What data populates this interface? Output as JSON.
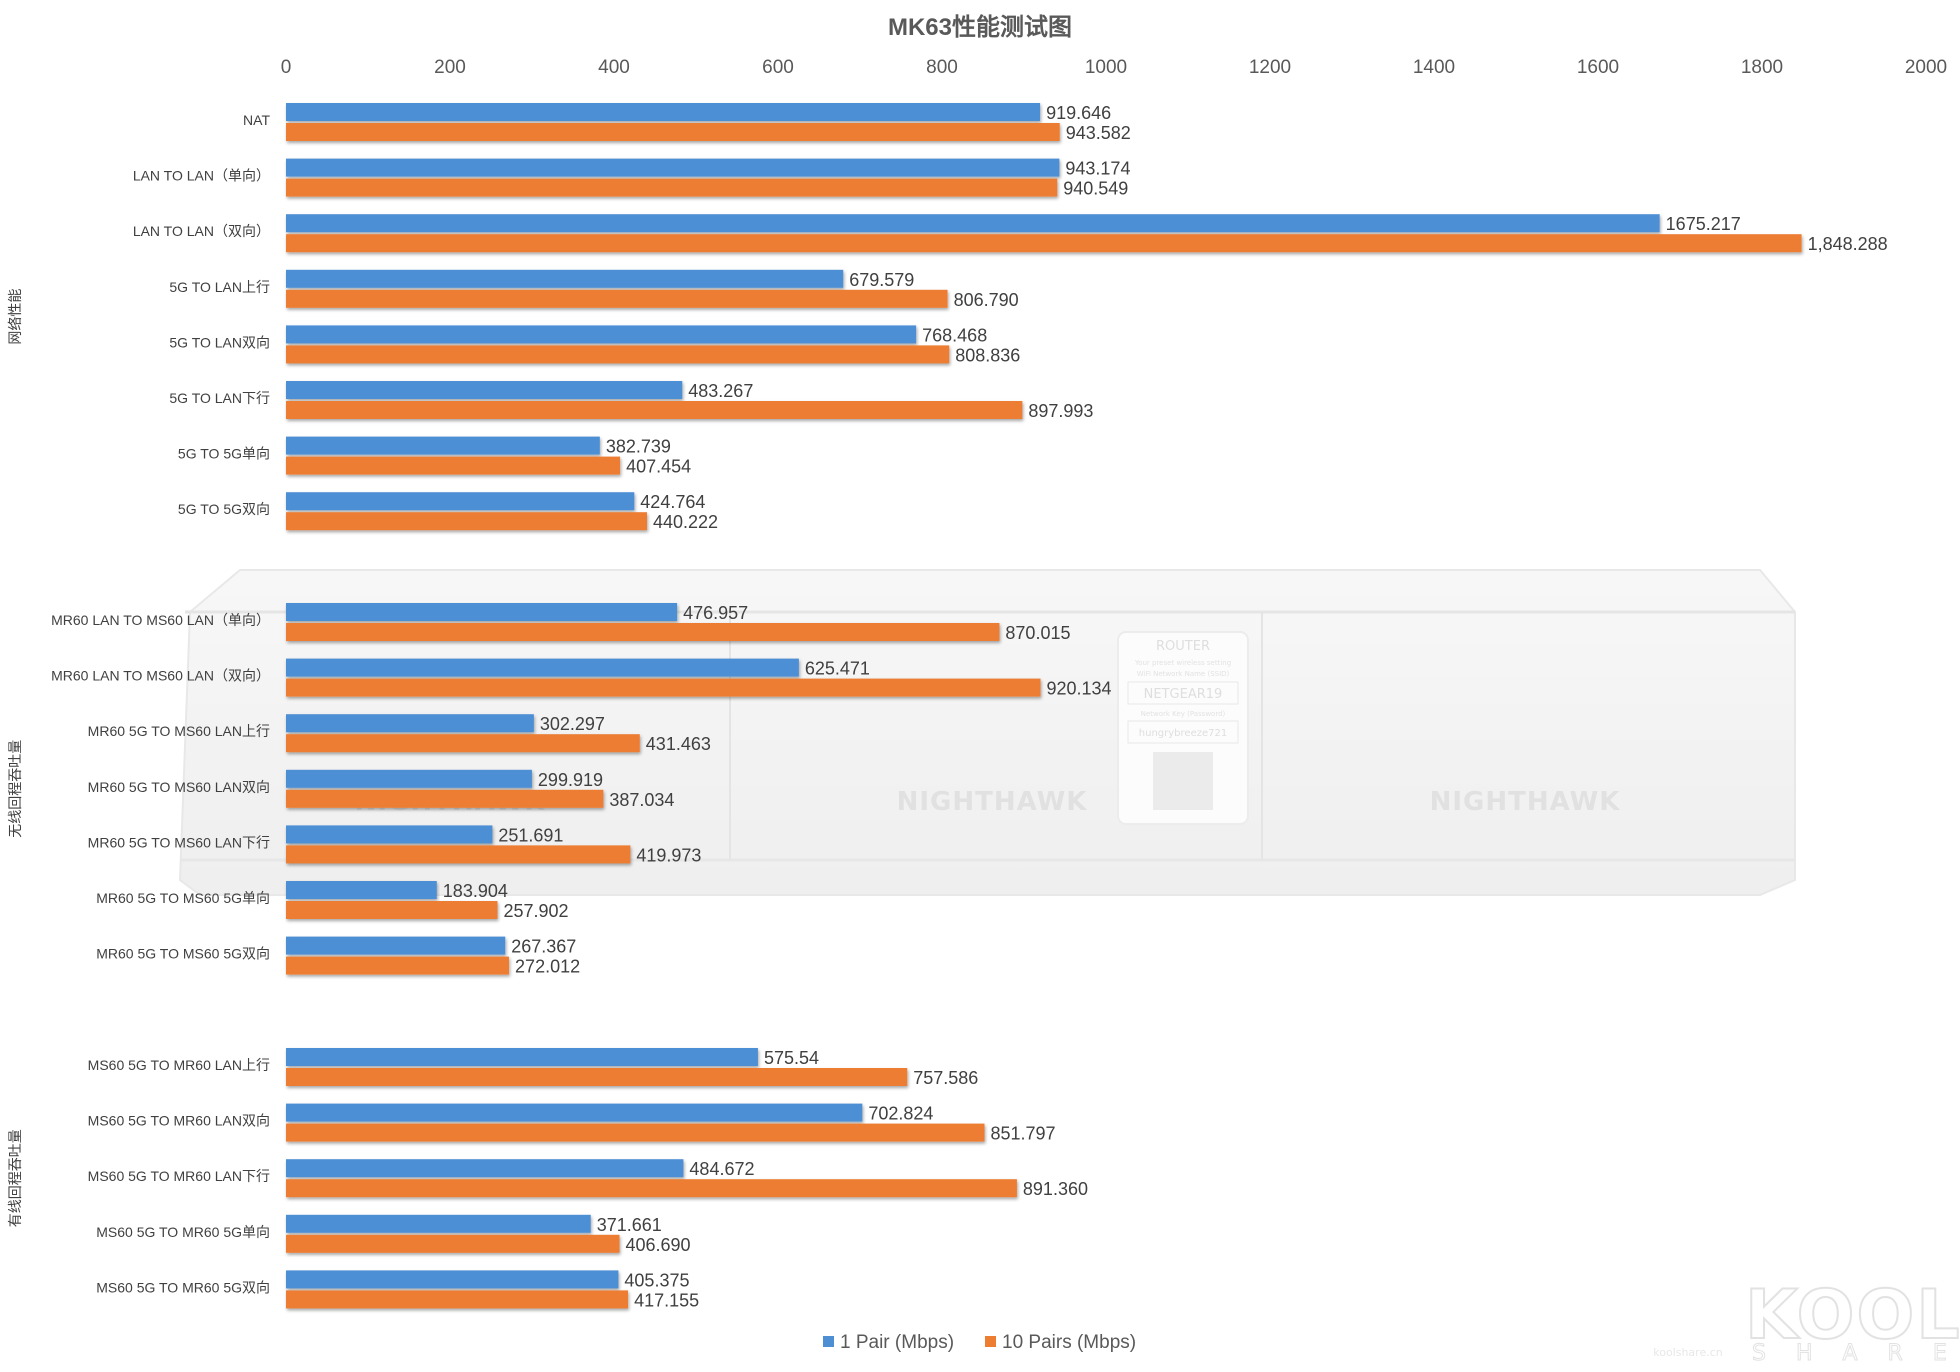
{
  "chart_data": {
    "type": "bar",
    "orientation": "horizontal",
    "title": "MK63性能测试图",
    "xlim": [
      0,
      2000
    ],
    "x_ticks": [
      0,
      200,
      400,
      600,
      800,
      1000,
      1200,
      1400,
      1600,
      1800,
      2000
    ],
    "x_axis_position": "top",
    "grid": false,
    "legend_position": "bottom-center",
    "series": [
      {
        "name": "1 Pair (Mbps)",
        "color": "#4e8fd4"
      },
      {
        "name": "10  Pairs  (Mbps)",
        "color": "#ed7d31"
      }
    ],
    "groups": [
      {
        "label": "网络性能",
        "items": [
          {
            "category": "NAT",
            "values": [
              919.646,
              943.582
            ],
            "labels": [
              "919.646",
              "943.582"
            ]
          },
          {
            "category": "LAN TO LAN（单向）",
            "values": [
              943.174,
              940.549
            ],
            "labels": [
              "943.174",
              "940.549"
            ]
          },
          {
            "category": "LAN TO LAN（双向）",
            "values": [
              1675.217,
              1848.288
            ],
            "labels": [
              "1675.217",
              "1,848.288"
            ]
          },
          {
            "category": "5G TO LAN上行",
            "values": [
              679.579,
              806.79
            ],
            "labels": [
              "679.579",
              "806.790"
            ]
          },
          {
            "category": "5G TO LAN双向",
            "values": [
              768.468,
              808.836
            ],
            "labels": [
              "768.468",
              "808.836"
            ]
          },
          {
            "category": "5G TO LAN下行",
            "values": [
              483.267,
              897.993
            ],
            "labels": [
              "483.267",
              "897.993"
            ]
          },
          {
            "category": "5G TO 5G单向",
            "values": [
              382.739,
              407.454
            ],
            "labels": [
              "382.739",
              "407.454"
            ]
          },
          {
            "category": "5G TO 5G双向",
            "values": [
              424.764,
              440.222
            ],
            "labels": [
              "424.764",
              "440.222"
            ]
          }
        ]
      },
      {
        "label": "无线回程吞吐量",
        "items": [
          {
            "category": "MR60 LAN TO MS60 LAN（单向）",
            "values": [
              476.957,
              870.015
            ],
            "labels": [
              "476.957",
              "870.015"
            ]
          },
          {
            "category": "MR60 LAN TO MS60 LAN（双向）",
            "values": [
              625.471,
              920.134
            ],
            "labels": [
              "625.471",
              "920.134"
            ]
          },
          {
            "category": "MR60 5G TO MS60 LAN上行",
            "values": [
              302.297,
              431.463
            ],
            "labels": [
              "302.297",
              "431.463"
            ]
          },
          {
            "category": "MR60 5G TO MS60 LAN双向",
            "values": [
              299.919,
              387.034
            ],
            "labels": [
              "299.919",
              "387.034"
            ]
          },
          {
            "category": "MR60 5G TO MS60 LAN下行",
            "values": [
              251.691,
              419.973
            ],
            "labels": [
              "251.691",
              "419.973"
            ]
          },
          {
            "category": "MR60 5G TO MS60 5G单向",
            "values": [
              183.904,
              257.902
            ],
            "labels": [
              "183.904",
              "257.902"
            ]
          },
          {
            "category": "MR60 5G TO MS60 5G双向",
            "values": [
              267.367,
              272.012
            ],
            "labels": [
              "267.367",
              "272.012"
            ]
          }
        ]
      },
      {
        "label": "有线回程吞吐量",
        "items": [
          {
            "category": "MS60 5G TO MR60 LAN上行",
            "values": [
              575.54,
              757.586
            ],
            "labels": [
              "575.54",
              "757.586"
            ]
          },
          {
            "category": "MS60 5G TO MR60 LAN双向",
            "values": [
              702.824,
              851.797
            ],
            "labels": [
              "702.824",
              "851.797"
            ]
          },
          {
            "category": "MS60 5G TO MR60 LAN下行",
            "values": [
              484.672,
              891.36
            ],
            "labels": [
              "484.672",
              "891.360"
            ]
          },
          {
            "category": "MS60 5G TO MR60 5G单向",
            "values": [
              371.661,
              406.69
            ],
            "labels": [
              "371.661",
              "406.690"
            ]
          },
          {
            "category": "MS60 5G TO MR60 5G双向",
            "values": [
              405.375,
              417.155
            ],
            "labels": [
              "405.375",
              "417.155"
            ]
          }
        ]
      }
    ]
  },
  "background_image": {
    "description_texts": {
      "brand_left": "NIGHTHAWK",
      "brand_center": "NIGHTHAWK",
      "brand_right": "NIGHTHAWK",
      "label_title": "ROUTER",
      "label_line1": "Your preset wireless setting",
      "label_line2": "WiFi Network Name (SSID)",
      "label_ssid": "NETGEAR19",
      "label_line3": "Network Key (Password)",
      "label_password": "hungrybreeze721"
    }
  },
  "watermark": {
    "logo": "KOOL",
    "sub": "SHARE",
    "site": "koolshare.cn"
  }
}
